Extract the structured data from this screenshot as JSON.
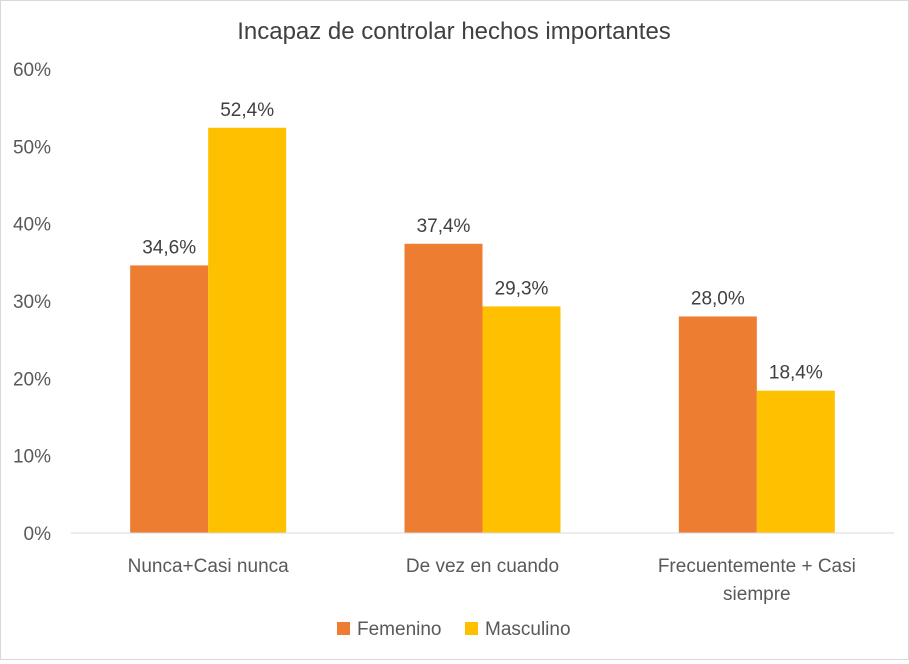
{
  "chart_data": {
    "type": "bar",
    "title": "Incapaz de controlar hechos importantes",
    "categories": [
      "Nunca+Casi nunca",
      "De vez en cuando",
      "Frecuentemente + Casi siempre"
    ],
    "series": [
      {
        "name": "Femenino",
        "values": [
          34.6,
          37.4,
          28.0
        ],
        "labels": [
          "34,6%",
          "37,4%",
          "28,0%"
        ],
        "color": "#ED7D31"
      },
      {
        "name": "Masculino",
        "values": [
          52.4,
          29.3,
          18.4
        ],
        "labels": [
          "52,4%",
          "29,3%",
          "18,4%"
        ],
        "color": "#FFC000"
      }
    ],
    "ylim": [
      0,
      60
    ],
    "yticks": [
      0,
      10,
      20,
      30,
      40,
      50,
      60
    ],
    "ytick_labels": [
      "0%",
      "10%",
      "20%",
      "30%",
      "40%",
      "50%",
      "60%"
    ],
    "grid": false,
    "legend": "bottom"
  }
}
